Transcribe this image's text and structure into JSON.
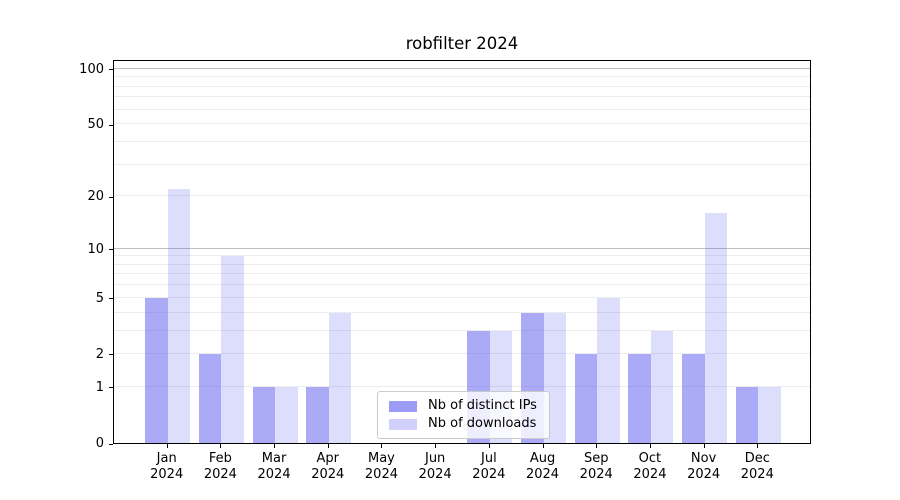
{
  "title": "robfilter 2024",
  "chart_data": {
    "type": "bar",
    "title": "robfilter 2024",
    "categories": [
      "Jan",
      "Feb",
      "Mar",
      "Apr",
      "May",
      "Jun",
      "Jul",
      "Aug",
      "Sep",
      "Oct",
      "Nov",
      "Dec"
    ],
    "year_label": "2024",
    "series": [
      {
        "name": "Nb of distinct IPs",
        "color": "#5555F0",
        "alpha": 0.5,
        "solid_color": "#AAAAF4",
        "values": [
          5,
          2,
          1,
          1,
          0,
          0,
          3,
          4,
          2,
          2,
          2,
          1
        ]
      },
      {
        "name": "Nb of downloads",
        "color": "#5555F0",
        "alpha": 0.2,
        "solid_color": "#DCDCF8",
        "values": [
          22,
          9,
          1,
          4,
          0,
          0,
          3,
          4,
          5,
          3,
          16,
          1
        ]
      }
    ],
    "xlabel": "",
    "ylabel": "",
    "yscale": "log10(1+x)",
    "ylim": [
      0,
      113
    ],
    "yticks": [
      0,
      1,
      2,
      5,
      10,
      20,
      50,
      100
    ],
    "grid": {
      "on": true,
      "minor_values": [
        1,
        2,
        3,
        4,
        5,
        6,
        7,
        8,
        9,
        20,
        30,
        40,
        50,
        60,
        70,
        80,
        90
      ],
      "major_values": [
        10,
        100
      ],
      "minor_color": "#ECECEC",
      "major_color": "#BFBFBF"
    },
    "legend_position": "bottom-center-inside"
  },
  "legend": {
    "items": [
      {
        "label": "Nb of distinct IPs"
      },
      {
        "label": "Nb of downloads"
      }
    ]
  },
  "colors": {
    "background": "#FFFFFF",
    "axis": "#000000",
    "bar_distinct_ips": "#AAAAF4",
    "bar_downloads": "#DCDCF8"
  }
}
